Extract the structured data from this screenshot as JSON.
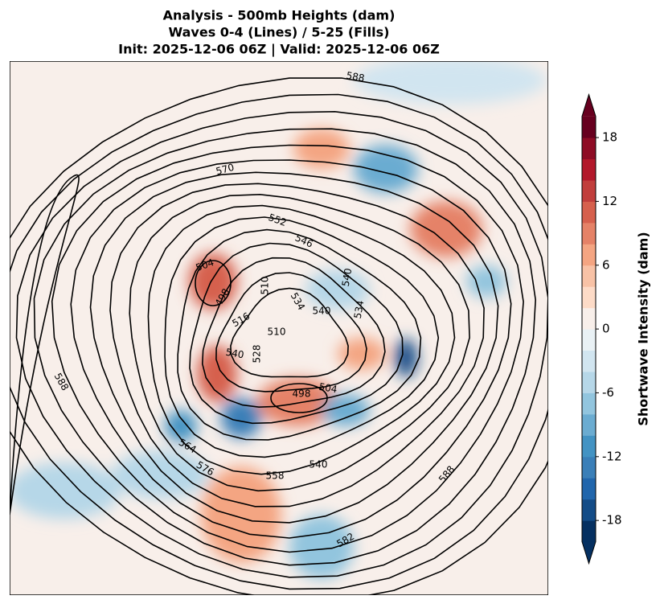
{
  "header": {
    "title_lines": [
      "Analysis - 500mb Heights (dam)",
      "Waves 0-4 (Lines) / 5-25 (Fills)",
      "Init: 2025-12-06 06Z | Valid: 2025-12-06 06Z"
    ]
  },
  "colorbar": {
    "label": "Shortwave Intensity (dam)",
    "lim": [
      -20,
      20
    ],
    "ticks": [
      -18,
      -12,
      -6,
      0,
      6,
      12,
      18
    ],
    "colors": [
      "#053061",
      "#134c87",
      "#2166ac",
      "#3a7fb8",
      "#4393c3",
      "#6bacd1",
      "#92c5de",
      "#b6d7e8",
      "#d1e5f0",
      "#e9f1f5",
      "#f8efea",
      "#fddbc7",
      "#f8c2a6",
      "#f4a582",
      "#e58267",
      "#d6604d",
      "#c13e3c",
      "#b2182b",
      "#8e0c25",
      "#67001f"
    ]
  },
  "contour_labels": [
    "588",
    "570",
    "552",
    "546",
    "504",
    "498",
    "510",
    "516",
    "540",
    "540",
    "534",
    "510",
    "534",
    "540",
    "528",
    "504",
    "498",
    "588",
    "564",
    "576",
    "558",
    "540",
    "588",
    "582"
  ]
}
